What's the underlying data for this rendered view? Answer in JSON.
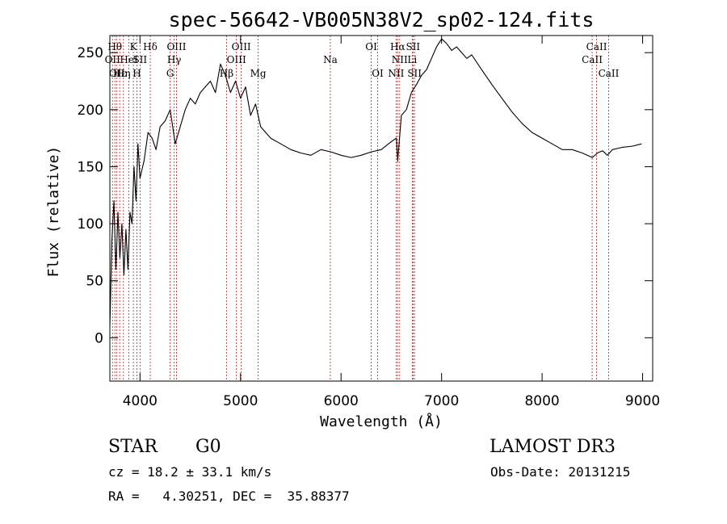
{
  "chart_data": {
    "type": "line",
    "title": "spec-56642-VB005N38V2_sp02-124.fits",
    "xlabel": "Wavelength (Å)",
    "ylabel": "Flux (relative)",
    "xlim": [
      3700,
      9100
    ],
    "ylim": [
      -38,
      265
    ],
    "xticks": [
      4000,
      5000,
      6000,
      7000,
      8000,
      9000
    ],
    "yticks": [
      0,
      50,
      100,
      150,
      200,
      250
    ],
    "grid": false,
    "line_color": "#000000",
    "marker_color": "#b22222",
    "series": [
      {
        "x": [
          3700,
          3720,
          3740,
          3760,
          3780,
          3800,
          3820,
          3840,
          3860,
          3880,
          3900,
          3920,
          3940,
          3960,
          3980,
          4000,
          4040,
          4080,
          4120,
          4160,
          4200,
          4250,
          4300,
          4350,
          4400,
          4450,
          4500,
          4550,
          4600,
          4650,
          4700,
          4750,
          4800,
          4850,
          4900,
          4950,
          5000,
          5050,
          5100,
          5150,
          5200,
          5300,
          5400,
          5500,
          5600,
          5700,
          5800,
          5900,
          6000,
          6100,
          6200,
          6300,
          6400,
          6500,
          6550,
          6563,
          6600,
          6650,
          6700,
          6750,
          6800,
          6850,
          6900,
          6950,
          7000,
          7050,
          7100,
          7150,
          7200,
          7250,
          7300,
          7400,
          7500,
          7600,
          7700,
          7800,
          7900,
          8000,
          8100,
          8200,
          8300,
          8400,
          8500,
          8550,
          8600,
          8650,
          8700,
          8800,
          8900,
          8990
        ],
        "y": [
          10,
          85,
          120,
          60,
          110,
          70,
          100,
          55,
          95,
          60,
          110,
          100,
          150,
          120,
          170,
          140,
          155,
          180,
          175,
          165,
          185,
          190,
          200,
          170,
          185,
          200,
          210,
          205,
          215,
          220,
          225,
          215,
          240,
          230,
          215,
          225,
          210,
          220,
          195,
          205,
          185,
          175,
          170,
          165,
          162,
          160,
          165,
          163,
          160,
          158,
          160,
          163,
          165,
          172,
          175,
          155,
          195,
          200,
          215,
          222,
          230,
          235,
          245,
          255,
          262,
          258,
          252,
          255,
          250,
          245,
          248,
          235,
          222,
          210,
          198,
          188,
          180,
          175,
          170,
          165,
          165,
          162,
          158,
          162,
          164,
          160,
          165,
          167,
          168,
          170
        ]
      }
    ],
    "lines": [
      {
        "wl": 3726,
        "name": "OII",
        "row": 2
      },
      {
        "wl": 3750,
        "name": "Hθ",
        "row": 1
      },
      {
        "wl": 3770,
        "name": "OII",
        "row": 3
      },
      {
        "wl": 3798,
        "name": "Hε",
        "row": 3
      },
      {
        "wl": 3835,
        "name": "Hη",
        "row": 3
      },
      {
        "wl": 3889,
        "name": "HeI",
        "row": 2
      },
      {
        "wl": 3934,
        "name": "K",
        "row": 1
      },
      {
        "wl": 3969,
        "name": "H",
        "row": 3
      },
      {
        "wl": 4000,
        "name": "SII",
        "row": 2
      },
      {
        "wl": 4102,
        "name": "Hδ",
        "row": 1
      },
      {
        "wl": 4300,
        "name": "G",
        "row": 3
      },
      {
        "wl": 4340,
        "name": "Hγ",
        "row": 2
      },
      {
        "wl": 4363,
        "name": "OIII",
        "row": 1
      },
      {
        "wl": 4861,
        "name": "Hβ",
        "row": 3
      },
      {
        "wl": 4959,
        "name": "OIII",
        "row": 2
      },
      {
        "wl": 5007,
        "name": "OIII",
        "row": 1
      },
      {
        "wl": 5175,
        "name": "Mg",
        "row": 3
      },
      {
        "wl": 5893,
        "name": "Na",
        "row": 2
      },
      {
        "wl": 6300,
        "name": "OI",
        "row": 1
      },
      {
        "wl": 6364,
        "name": "OI",
        "row": 3
      },
      {
        "wl": 6548,
        "name": "NII",
        "row": 3
      },
      {
        "wl": 6563,
        "name": "Hα",
        "row": 1
      },
      {
        "wl": 6583,
        "name": "NII",
        "row": 2
      },
      {
        "wl": 6708,
        "name": "Li",
        "row": 2
      },
      {
        "wl": 6716,
        "name": "SII",
        "row": 1
      },
      {
        "wl": 6731,
        "name": "SII",
        "row": 3
      },
      {
        "wl": 8498,
        "name": "CaII",
        "row": 2
      },
      {
        "wl": 8542,
        "name": "CaII",
        "row": 1
      },
      {
        "wl": 8662,
        "name": "CaII",
        "row": 3
      }
    ]
  },
  "info": {
    "class": "STAR",
    "subclass": "G0",
    "survey": "LAMOST DR3",
    "cz": "cz = 18.2 ± 33.1 km/s",
    "obs_date": "Obs-Date: 20131215",
    "radec": "RA =   4.30251, DEC =  35.88377"
  }
}
